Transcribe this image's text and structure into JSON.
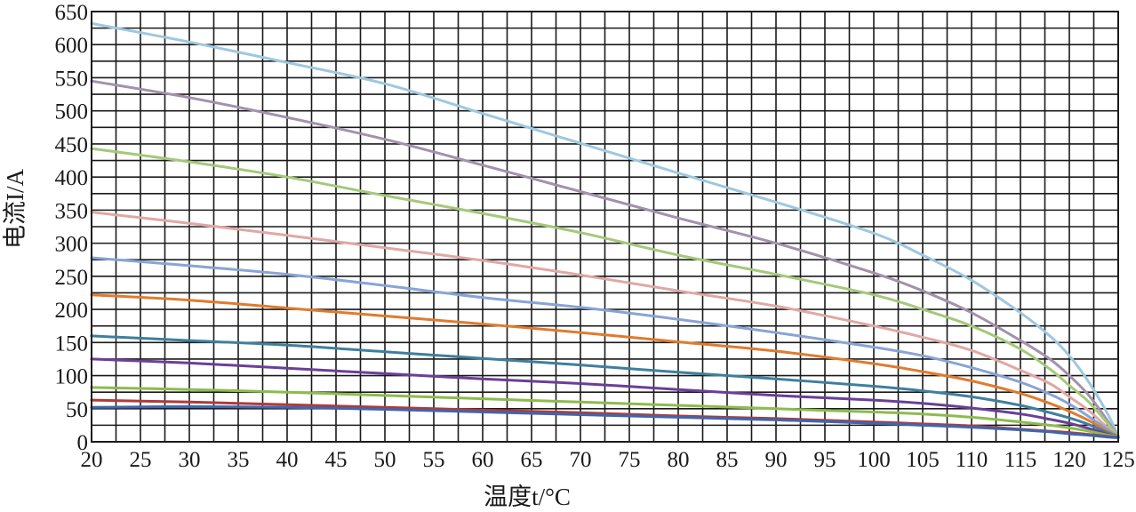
{
  "chart_data": {
    "type": "line",
    "xlabel": "温度t/°C",
    "ylabel": "电流I/A",
    "xlim": [
      20,
      125
    ],
    "ylim": [
      0,
      650
    ],
    "x_ticks": [
      "20",
      "25",
      "30",
      "35",
      "40",
      "45",
      "50",
      "55",
      "60",
      "65",
      "70",
      "75",
      "80",
      "85",
      "90",
      "95",
      "100",
      "105",
      "110",
      "115",
      "120",
      "125"
    ],
    "y_ticks": [
      "0",
      "50",
      "100",
      "150",
      "200",
      "250",
      "300",
      "350",
      "400",
      "450",
      "500",
      "550",
      "600",
      "650"
    ],
    "grid": {
      "x_step": 2.5,
      "y_step": 25
    },
    "legend": "none",
    "series": [
      {
        "color": "#9ec8e0",
        "values": [
          [
            20,
            632
          ],
          [
            30,
            604
          ],
          [
            40,
            573
          ],
          [
            50,
            541
          ],
          [
            60,
            496
          ],
          [
            70,
            451
          ],
          [
            80,
            406
          ],
          [
            90,
            362
          ],
          [
            100,
            315
          ],
          [
            105,
            282
          ],
          [
            110,
            244
          ],
          [
            115,
            195
          ],
          [
            118,
            160
          ],
          [
            120,
            130
          ],
          [
            122,
            90
          ],
          [
            124,
            40
          ],
          [
            125,
            8
          ]
        ]
      },
      {
        "color": "#a391ac",
        "values": [
          [
            20,
            545
          ],
          [
            30,
            520
          ],
          [
            40,
            490
          ],
          [
            50,
            457
          ],
          [
            60,
            418
          ],
          [
            70,
            378
          ],
          [
            80,
            338
          ],
          [
            90,
            300
          ],
          [
            100,
            255
          ],
          [
            105,
            228
          ],
          [
            110,
            195
          ],
          [
            115,
            153
          ],
          [
            118,
            125
          ],
          [
            120,
            100
          ],
          [
            122,
            70
          ],
          [
            124,
            30
          ],
          [
            125,
            8
          ]
        ]
      },
      {
        "color": "#a4c97a",
        "values": [
          [
            20,
            443
          ],
          [
            30,
            423
          ],
          [
            40,
            400
          ],
          [
            50,
            372
          ],
          [
            60,
            345
          ],
          [
            70,
            316
          ],
          [
            80,
            282
          ],
          [
            90,
            253
          ],
          [
            100,
            222
          ],
          [
            105,
            200
          ],
          [
            110,
            175
          ],
          [
            115,
            140
          ],
          [
            118,
            110
          ],
          [
            120,
            85
          ],
          [
            122,
            60
          ],
          [
            124,
            26
          ],
          [
            125,
            8
          ]
        ]
      },
      {
        "color": "#dfa8a4",
        "values": [
          [
            20,
            347
          ],
          [
            30,
            330
          ],
          [
            40,
            312
          ],
          [
            50,
            293
          ],
          [
            60,
            274
          ],
          [
            70,
            252
          ],
          [
            80,
            228
          ],
          [
            90,
            205
          ],
          [
            100,
            175
          ],
          [
            105,
            158
          ],
          [
            110,
            138
          ],
          [
            115,
            108
          ],
          [
            118,
            88
          ],
          [
            120,
            68
          ],
          [
            122,
            47
          ],
          [
            124,
            20
          ],
          [
            125,
            8
          ]
        ]
      },
      {
        "color": "#88a4d6",
        "values": [
          [
            20,
            278
          ],
          [
            30,
            266
          ],
          [
            40,
            253
          ],
          [
            50,
            236
          ],
          [
            60,
            218
          ],
          [
            70,
            203
          ],
          [
            80,
            185
          ],
          [
            90,
            165
          ],
          [
            100,
            143
          ],
          [
            105,
            130
          ],
          [
            110,
            112
          ],
          [
            115,
            90
          ],
          [
            118,
            72
          ],
          [
            120,
            57
          ],
          [
            122,
            38
          ],
          [
            124,
            18
          ],
          [
            125,
            8
          ]
        ]
      },
      {
        "color": "#e07b2c",
        "values": [
          [
            20,
            222
          ],
          [
            30,
            214
          ],
          [
            40,
            202
          ],
          [
            50,
            190
          ],
          [
            60,
            178
          ],
          [
            70,
            165
          ],
          [
            80,
            151
          ],
          [
            90,
            137
          ],
          [
            100,
            118
          ],
          [
            105,
            106
          ],
          [
            110,
            92
          ],
          [
            115,
            73
          ],
          [
            118,
            58
          ],
          [
            120,
            46
          ],
          [
            122,
            32
          ],
          [
            124,
            15
          ],
          [
            125,
            8
          ]
        ]
      },
      {
        "color": "#3e7f9e",
        "values": [
          [
            20,
            160
          ],
          [
            30,
            153
          ],
          [
            40,
            146
          ],
          [
            50,
            136
          ],
          [
            60,
            126
          ],
          [
            70,
            116
          ],
          [
            80,
            105
          ],
          [
            90,
            95
          ],
          [
            100,
            84
          ],
          [
            105,
            77
          ],
          [
            110,
            68
          ],
          [
            115,
            55
          ],
          [
            118,
            44
          ],
          [
            120,
            36
          ],
          [
            122,
            26
          ],
          [
            124,
            13
          ],
          [
            125,
            8
          ]
        ]
      },
      {
        "color": "#6a3f98",
        "values": [
          [
            20,
            125
          ],
          [
            30,
            119
          ],
          [
            40,
            111
          ],
          [
            50,
            103
          ],
          [
            60,
            95
          ],
          [
            70,
            88
          ],
          [
            80,
            79
          ],
          [
            90,
            70
          ],
          [
            100,
            63
          ],
          [
            105,
            58
          ],
          [
            110,
            51
          ],
          [
            115,
            42
          ],
          [
            118,
            34
          ],
          [
            120,
            28
          ],
          [
            122,
            20
          ],
          [
            124,
            11
          ],
          [
            125,
            8
          ]
        ]
      },
      {
        "color": "#8dbb4d",
        "values": [
          [
            20,
            82
          ],
          [
            30,
            79
          ],
          [
            40,
            75
          ],
          [
            50,
            70
          ],
          [
            60,
            65
          ],
          [
            70,
            60
          ],
          [
            80,
            55
          ],
          [
            90,
            50
          ],
          [
            100,
            45
          ],
          [
            105,
            42
          ],
          [
            110,
            37
          ],
          [
            115,
            30
          ],
          [
            118,
            25
          ],
          [
            120,
            21
          ],
          [
            122,
            16
          ],
          [
            124,
            10
          ],
          [
            125,
            8
          ]
        ]
      },
      {
        "color": "#b03a3a",
        "values": [
          [
            20,
            63
          ],
          [
            30,
            60
          ],
          [
            40,
            56
          ],
          [
            50,
            52
          ],
          [
            60,
            48
          ],
          [
            70,
            44
          ],
          [
            80,
            39
          ],
          [
            90,
            35
          ],
          [
            100,
            30
          ],
          [
            105,
            27
          ],
          [
            110,
            24
          ],
          [
            115,
            19
          ],
          [
            118,
            16
          ],
          [
            120,
            14
          ],
          [
            122,
            11
          ],
          [
            124,
            8
          ],
          [
            125,
            7
          ]
        ]
      },
      {
        "color": "#3d66b0",
        "values": [
          [
            20,
            52
          ],
          [
            30,
            53
          ],
          [
            40,
            52
          ],
          [
            50,
            49
          ],
          [
            60,
            45
          ],
          [
            70,
            41
          ],
          [
            80,
            37
          ],
          [
            90,
            33
          ],
          [
            100,
            28
          ],
          [
            105,
            25
          ],
          [
            110,
            22
          ],
          [
            115,
            18
          ],
          [
            118,
            15
          ],
          [
            120,
            12
          ],
          [
            122,
            10
          ],
          [
            124,
            7
          ],
          [
            125,
            6
          ]
        ]
      }
    ]
  }
}
